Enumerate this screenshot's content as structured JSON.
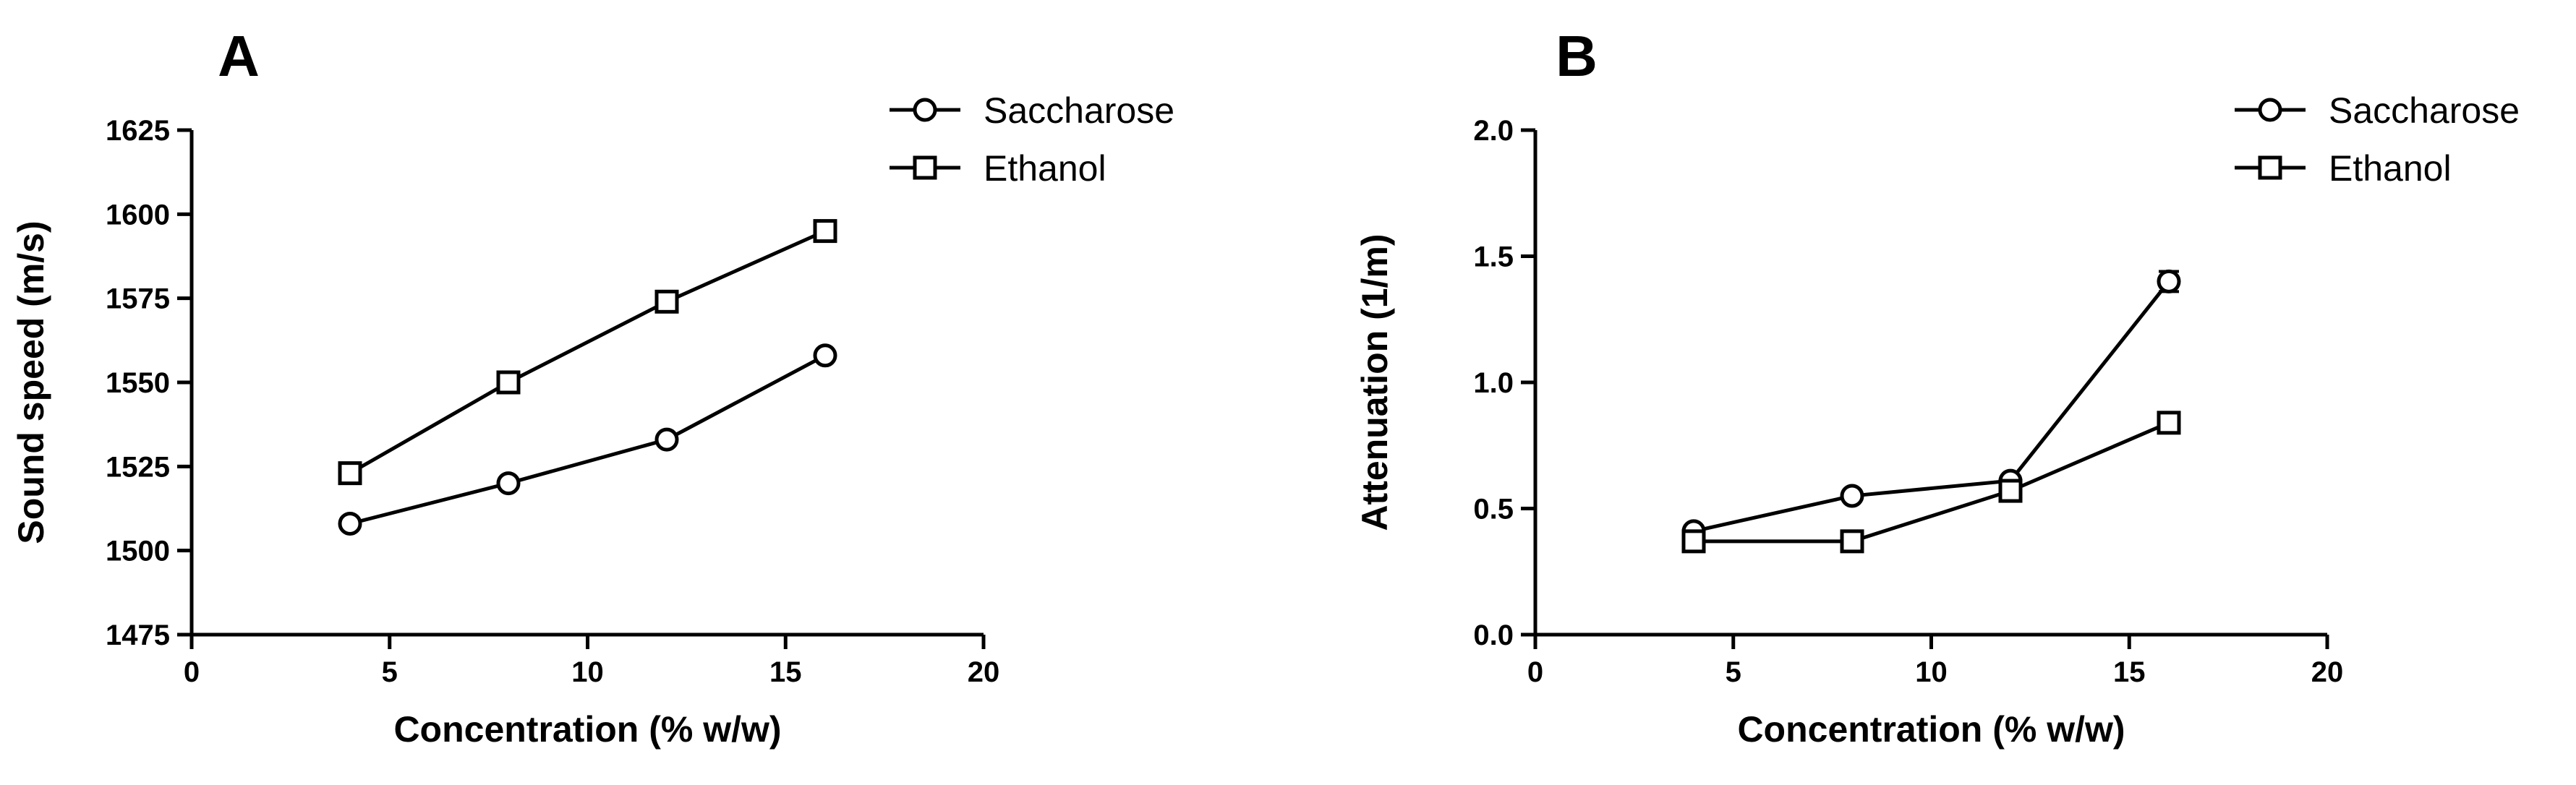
{
  "chart_data": [
    {
      "panel": "A",
      "type": "line",
      "xlabel": "Concentration (% w/w)",
      "ylabel": "Sound speed (m/s)",
      "xlim": [
        0,
        20
      ],
      "ylim": [
        1475,
        1625
      ],
      "xticks": [
        0,
        5,
        10,
        15,
        20
      ],
      "yticks": [
        1475,
        1500,
        1525,
        1550,
        1575,
        1600,
        1625
      ],
      "legend": "top-right",
      "grid": false,
      "series": [
        {
          "name": "Saccharose",
          "marker": "circle",
          "x": [
            4,
            8,
            12,
            16
          ],
          "y": [
            1508,
            1520,
            1533,
            1558
          ]
        },
        {
          "name": "Ethanol",
          "marker": "square",
          "x": [
            4,
            8,
            12,
            16
          ],
          "y": [
            1523,
            1550,
            1574,
            1595
          ]
        }
      ]
    },
    {
      "panel": "B",
      "type": "line",
      "xlabel": "Concentration (% w/w)",
      "ylabel": "Attenuation (1/m)",
      "xlim": [
        0,
        20
      ],
      "ylim": [
        0,
        2
      ],
      "xticks": [
        0,
        5,
        10,
        15,
        20
      ],
      "yticks": [
        0.0,
        0.5,
        1.0,
        1.5,
        2.0
      ],
      "ytick_labels": [
        "0.0",
        "0.5",
        "1.0",
        "1.5",
        "2.0"
      ],
      "legend": "top-right",
      "grid": false,
      "series": [
        {
          "name": "Saccharose",
          "marker": "circle",
          "x": [
            4,
            8,
            12,
            16
          ],
          "y": [
            0.41,
            0.55,
            0.61,
            1.4
          ],
          "yerr": [
            0,
            0,
            0,
            0.04
          ]
        },
        {
          "name": "Ethanol",
          "marker": "square",
          "x": [
            4,
            8,
            12,
            16
          ],
          "y": [
            0.37,
            0.37,
            0.57,
            0.84
          ]
        }
      ]
    }
  ]
}
